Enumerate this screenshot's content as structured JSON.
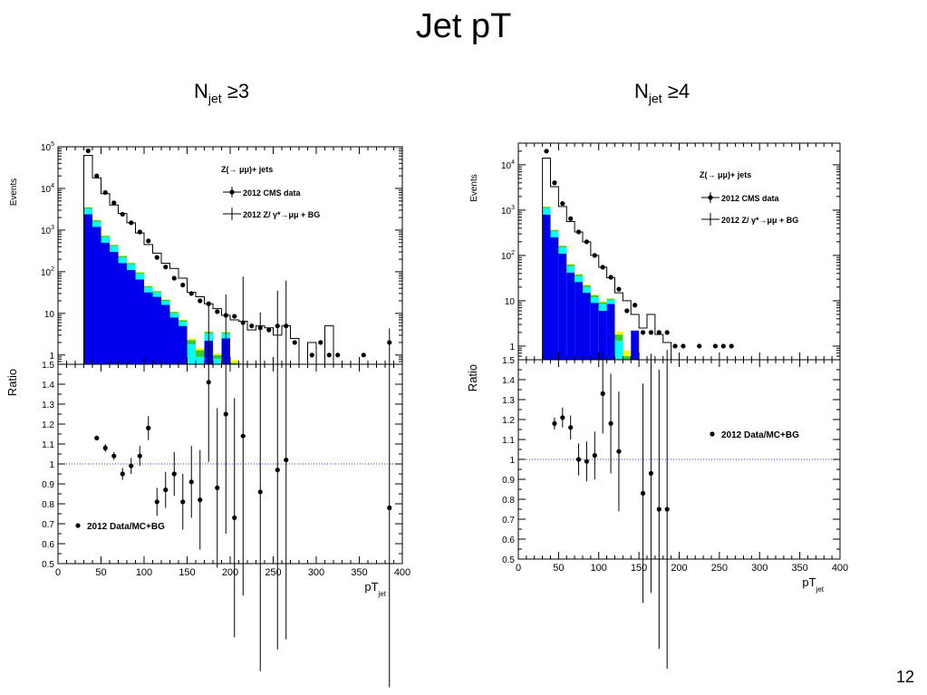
{
  "slide": {
    "title": "Jet pT",
    "page_number": "12"
  },
  "chart_data": [
    {
      "type": "bar",
      "title_main": "N",
      "title_sub": "jet",
      "title_tail": " ≥3",
      "top": {
        "ylabel": "Events",
        "yscale": "log",
        "ylim": [
          0.6,
          100000
        ],
        "yticks": [
          {
            "v": 1,
            "b": "1",
            "e": ""
          },
          {
            "v": 10,
            "b": "10",
            "e": ""
          },
          {
            "v": 100,
            "b": "10",
            "e": "2"
          },
          {
            "v": 1000,
            "b": "10",
            "e": "3"
          },
          {
            "v": 10000,
            "b": "10",
            "e": "4"
          },
          {
            "v": 100000,
            "b": "10",
            "e": "5"
          }
        ],
        "legend": {
          "title": "Z(→ μμ)+ jets",
          "data_label": "2012 CMS data",
          "mc_label": "2012 Z/ γ*→μμ + BG"
        },
        "bin_edges": [
          30,
          40,
          50,
          60,
          70,
          80,
          90,
          100,
          110,
          120,
          130,
          140,
          150,
          160,
          170,
          180,
          190,
          200,
          210,
          220,
          230,
          240,
          250,
          260,
          270,
          280,
          290,
          300,
          310,
          320,
          330,
          340,
          350,
          360,
          370,
          380,
          390
        ],
        "stack": [
          {
            "name": "blue",
            "color": "#0000ee",
            "values": [
              2400,
              1200,
              500,
              300,
              160,
              110,
              65,
              32,
              25,
              16,
              8,
              5,
              0,
              0,
              2.2,
              0,
              2.5,
              0,
              0,
              0,
              0,
              0,
              0,
              0,
              0,
              0,
              0,
              0,
              0,
              0,
              0,
              0,
              0,
              0,
              0,
              0
            ]
          },
          {
            "name": "cyan",
            "color": "#00ffff",
            "values": [
              850,
              400,
              180,
              110,
              60,
              40,
              24,
              10,
              7,
              4,
              2,
              1.3,
              1.8,
              0.9,
              1.1,
              0.8,
              0.8,
              0.5,
              0,
              0,
              0,
              0,
              0,
              0,
              0,
              0,
              0,
              0,
              0,
              0,
              0,
              0,
              0,
              0,
              0,
              0,
              0
            ]
          },
          {
            "name": "green",
            "color": "#33cc33",
            "values": [
              250,
              120,
              50,
              30,
              18,
              12,
              7,
              3,
              2,
              1.3,
              0.8,
              0.6,
              0.5,
              0.4,
              0.3,
              0.2,
              0.2,
              0.15,
              0.15,
              0.1,
              0,
              0,
              0,
              0,
              0,
              0,
              0,
              0,
              0,
              0,
              0,
              0,
              0,
              0,
              0,
              0
            ]
          },
          {
            "name": "yellow",
            "color": "#ffff00",
            "values": [
              80,
              40,
              16,
              10,
              6,
              4,
              2.5,
              1.2,
              0.8,
              0.5,
              0.3,
              0.2,
              0.2,
              0.15,
              0.15,
              0.1,
              0.1,
              0.1,
              0.1,
              0.1,
              0,
              0,
              0,
              0,
              0,
              0,
              0,
              0,
              0,
              0,
              0,
              0,
              0,
              0,
              0,
              0
            ]
          }
        ],
        "mc_total": [
          62000,
          18000,
          7500,
          4000,
          2500,
          1500,
          850,
          450,
          280,
          160,
          120,
          70,
          32,
          25,
          17,
          13,
          9,
          7,
          6.5,
          4,
          5,
          4.5,
          3,
          5,
          2.5,
          0.5,
          2,
          0,
          5,
          0.5,
          0.3,
          0,
          0.5,
          0,
          0,
          0
        ],
        "data_points": [
          {
            "x": 35,
            "y": 80000
          },
          {
            "x": 45,
            "y": 20000
          },
          {
            "x": 55,
            "y": 8000
          },
          {
            "x": 65,
            "y": 4500
          },
          {
            "x": 75,
            "y": 2400
          },
          {
            "x": 85,
            "y": 1500
          },
          {
            "x": 95,
            "y": 900
          },
          {
            "x": 105,
            "y": 550
          },
          {
            "x": 115,
            "y": 220
          },
          {
            "x": 125,
            "y": 130
          },
          {
            "x": 135,
            "y": 70
          },
          {
            "x": 145,
            "y": 48
          },
          {
            "x": 155,
            "y": 30
          },
          {
            "x": 165,
            "y": 20
          },
          {
            "x": 175,
            "y": 17
          },
          {
            "x": 185,
            "y": 11
          },
          {
            "x": 195,
            "y": 9
          },
          {
            "x": 205,
            "y": 8.5
          },
          {
            "x": 215,
            "y": 6
          },
          {
            "x": 225,
            "y": 5
          },
          {
            "x": 235,
            "y": 4.5
          },
          {
            "x": 245,
            "y": 4
          },
          {
            "x": 255,
            "y": 5
          },
          {
            "x": 265,
            "y": 5
          },
          {
            "x": 275,
            "y": 2
          },
          {
            "x": 295,
            "y": 1
          },
          {
            "x": 305,
            "y": 2
          },
          {
            "x": 315,
            "y": 1
          },
          {
            "x": 325,
            "y": 1
          },
          {
            "x": 355,
            "y": 1
          },
          {
            "x": 385,
            "y": 2
          }
        ]
      },
      "ratio": {
        "ylabel": "Ratio",
        "ylim": [
          0.5,
          1.5
        ],
        "yticks": [
          "0.5",
          "0.6",
          "0.7",
          "0.8",
          "0.9",
          "1",
          "1.1",
          "1.2",
          "1.3",
          "1.4",
          "1.5"
        ],
        "legend": "2012 Data/MC+BG",
        "points": [
          {
            "x": 45,
            "y": 1.13,
            "err": 0.01
          },
          {
            "x": 55,
            "y": 1.08,
            "err": 0.02
          },
          {
            "x": 65,
            "y": 1.04,
            "err": 0.02
          },
          {
            "x": 75,
            "y": 0.95,
            "err": 0.03
          },
          {
            "x": 85,
            "y": 0.99,
            "err": 0.04
          },
          {
            "x": 95,
            "y": 1.04,
            "err": 0.05
          },
          {
            "x": 105,
            "y": 1.18,
            "err": 0.06
          },
          {
            "x": 115,
            "y": 0.81,
            "err": 0.07
          },
          {
            "x": 125,
            "y": 0.87,
            "err": 0.09
          },
          {
            "x": 135,
            "y": 0.95,
            "err": 0.11
          },
          {
            "x": 145,
            "y": 0.81,
            "err": 0.14
          },
          {
            "x": 155,
            "y": 0.91,
            "err": 0.18
          },
          {
            "x": 165,
            "y": 0.82,
            "err": 0.25
          },
          {
            "x": 175,
            "y": 1.41,
            "err": 0.4
          },
          {
            "x": 185,
            "y": 0.88,
            "err": 0.4
          },
          {
            "x": 195,
            "y": 1.25,
            "err": 0.6
          },
          {
            "x": 205,
            "y": 0.73,
            "err": 0.6
          },
          {
            "x": 215,
            "y": 1.14,
            "err": 0.8
          },
          {
            "x": 235,
            "y": 0.86,
            "err": 0.9
          },
          {
            "x": 255,
            "y": 0.97,
            "err": 0.9
          },
          {
            "x": 265,
            "y": 1.02,
            "err": 0.9
          },
          {
            "x": 385,
            "y": 0.78,
            "err": 0.9
          }
        ]
      },
      "xaxis": {
        "label_main": "pT",
        "label_sub": "jet",
        "xlim": [
          0,
          400
        ],
        "ticks": [
          "0",
          "50",
          "100",
          "150",
          "200",
          "250",
          "300",
          "350",
          "400"
        ]
      }
    },
    {
      "type": "bar",
      "title_main": "N",
      "title_sub": "jet",
      "title_tail": " ≥4",
      "top": {
        "ylabel": "Events",
        "yscale": "log",
        "ylim": [
          0.5,
          30000
        ],
        "yticks": [
          {
            "v": 1,
            "b": "1",
            "e": ""
          },
          {
            "v": 10,
            "b": "10",
            "e": ""
          },
          {
            "v": 100,
            "b": "10",
            "e": "2"
          },
          {
            "v": 1000,
            "b": "10",
            "e": "3"
          },
          {
            "v": 10000,
            "b": "10",
            "e": "4"
          }
        ],
        "legend": {
          "title": "Z(→ μμ)+ jets",
          "data_label": "2012 CMS data",
          "mc_label": "2012 Z/ γ*→μμ + BG"
        },
        "bin_edges": [
          30,
          40,
          50,
          60,
          70,
          80,
          90,
          100,
          110,
          120,
          130,
          140,
          150,
          160,
          170,
          180,
          190,
          200,
          210,
          220,
          230,
          240,
          250,
          260,
          270
        ],
        "stack": [
          {
            "name": "blue",
            "color": "#0000ee",
            "values": [
              800,
              250,
              110,
              42,
              26,
              15,
              9,
              6,
              8.5,
              0,
              0,
              2.2,
              0,
              0,
              0,
              0,
              0,
              0,
              0,
              0,
              0,
              0,
              0,
              0
            ]
          },
          {
            "name": "cyan",
            "color": "#00ffff",
            "values": [
              300,
              90,
              40,
              16,
              9,
              5,
              3,
              2.5,
              2,
              1.3,
              0,
              0,
              0,
              0,
              0,
              0,
              0,
              0,
              0,
              0,
              0,
              0,
              0,
              0
            ]
          },
          {
            "name": "green",
            "color": "#33cc33",
            "values": [
              80,
              25,
              12,
              5,
              3,
              1.8,
              1.2,
              0.8,
              0.6,
              0.5,
              0.6,
              0,
              0,
              0,
              0,
              0,
              0,
              0,
              0,
              0,
              0,
              0,
              0,
              0
            ]
          },
          {
            "name": "yellow",
            "color": "#ffff00",
            "values": [
              25,
              8,
              4,
              2,
              1.2,
              0.8,
              0.5,
              0.4,
              0.3,
              0.3,
              0.2,
              0,
              0,
              0,
              0,
              0,
              0,
              0,
              0,
              0,
              0,
              0,
              0,
              0
            ]
          }
        ],
        "mc_total": [
          14000,
          3300,
          1200,
          560,
          330,
          200,
          100,
          55,
          32,
          15,
          10,
          5,
          2.5,
          5,
          1.8,
          1.2,
          0.4,
          0,
          0,
          0,
          0,
          0,
          0,
          0
        ],
        "data_points": [
          {
            "x": 35,
            "y": 20000
          },
          {
            "x": 45,
            "y": 4000
          },
          {
            "x": 55,
            "y": 1400
          },
          {
            "x": 65,
            "y": 650
          },
          {
            "x": 75,
            "y": 330
          },
          {
            "x": 85,
            "y": 200
          },
          {
            "x": 95,
            "y": 100
          },
          {
            "x": 105,
            "y": 55
          },
          {
            "x": 115,
            "y": 33
          },
          {
            "x": 125,
            "y": 18
          },
          {
            "x": 135,
            "y": 6
          },
          {
            "x": 145,
            "y": 8
          },
          {
            "x": 155,
            "y": 2
          },
          {
            "x": 165,
            "y": 2
          },
          {
            "x": 175,
            "y": 2
          },
          {
            "x": 185,
            "y": 2
          },
          {
            "x": 195,
            "y": 1
          },
          {
            "x": 205,
            "y": 1
          },
          {
            "x": 225,
            "y": 1
          },
          {
            "x": 245,
            "y": 1
          },
          {
            "x": 255,
            "y": 1
          },
          {
            "x": 265,
            "y": 1
          }
        ]
      },
      "ratio": {
        "ylabel": "Ratio",
        "ylim": [
          0.5,
          1.5
        ],
        "yticks": [
          "0.5",
          "0.6",
          "0.7",
          "0.8",
          "0.9",
          "1",
          "1.1",
          "1.2",
          "1.3",
          "1.4",
          "1.5"
        ],
        "legend": "2012 Data/MC+BG",
        "points": [
          {
            "x": 45,
            "y": 1.18,
            "err": 0.03
          },
          {
            "x": 55,
            "y": 1.21,
            "err": 0.05
          },
          {
            "x": 65,
            "y": 1.16,
            "err": 0.06
          },
          {
            "x": 75,
            "y": 1.0,
            "err": 0.08
          },
          {
            "x": 85,
            "y": 0.99,
            "err": 0.1
          },
          {
            "x": 95,
            "y": 1.02,
            "err": 0.12
          },
          {
            "x": 105,
            "y": 1.33,
            "err": 0.2
          },
          {
            "x": 115,
            "y": 1.18,
            "err": 0.25
          },
          {
            "x": 125,
            "y": 1.04,
            "err": 0.3
          },
          {
            "x": 155,
            "y": 0.83,
            "err": 0.55
          },
          {
            "x": 165,
            "y": 0.93,
            "err": 0.6
          },
          {
            "x": 175,
            "y": 0.75,
            "err": 0.7
          },
          {
            "x": 185,
            "y": 0.75,
            "err": 0.8
          }
        ]
      },
      "xaxis": {
        "label_main": "pT",
        "label_sub": "jet",
        "xlim": [
          0,
          400
        ],
        "ticks": [
          "0",
          "50",
          "100",
          "150",
          "200",
          "250",
          "300",
          "350",
          "400"
        ]
      }
    }
  ]
}
